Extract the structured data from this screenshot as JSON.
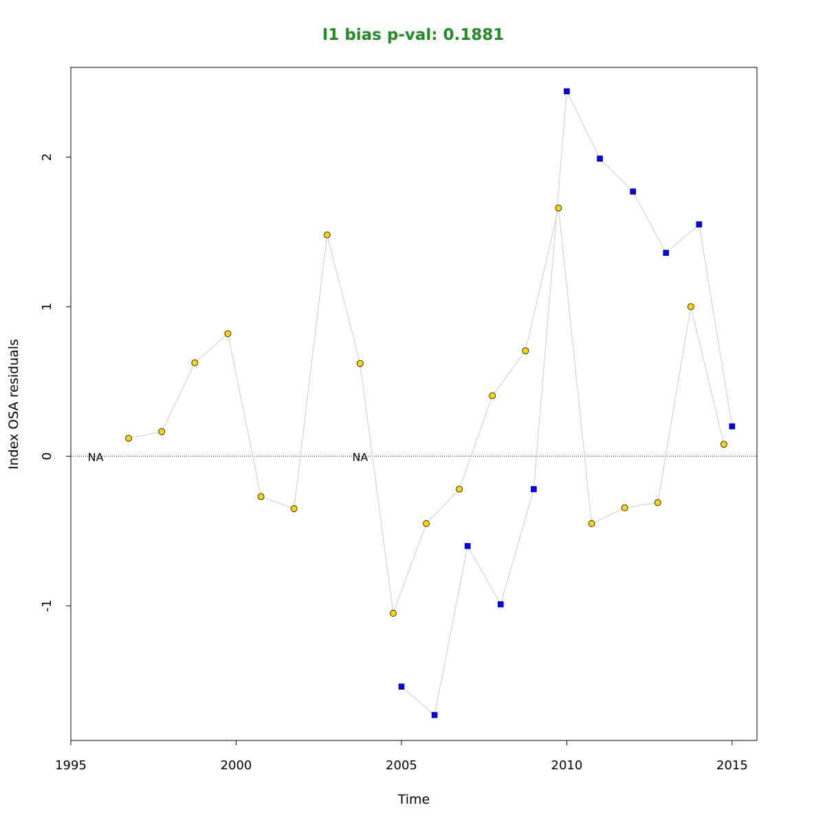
{
  "chart_data": {
    "type": "scatter",
    "title": "I1 bias p-val: 0.1881",
    "title_color": "#228B22",
    "xlabel": "Time",
    "ylabel": "Index OSA residuals",
    "xlim": [
      1995,
      2015.75
    ],
    "ylim": [
      -1.9,
      2.6
    ],
    "x_ticks": [
      1995,
      2000,
      2005,
      2010,
      2015
    ],
    "y_ticks": [
      -1,
      0,
      1,
      2
    ],
    "reference_line": {
      "y": 0,
      "style": "dotted"
    },
    "connector_color": "#cccccc",
    "series": [
      {
        "marker": "circle",
        "color": "#FFD700",
        "x": [
          1996.75,
          1997.75,
          1998.75,
          1999.75,
          2000.75,
          2001.75,
          2002.75,
          2003.75,
          2004.75,
          2005.75,
          2006.75,
          2007.75,
          2008.75,
          2009.75,
          2010.75,
          2011.75,
          2012.75,
          2013.75,
          2014.75
        ],
        "y": [
          0.12,
          0.165,
          0.625,
          0.82,
          -0.27,
          -0.35,
          1.48,
          0.62,
          -1.05,
          -0.45,
          -0.22,
          0.405,
          0.705,
          1.66,
          -0.45,
          -0.345,
          -0.31,
          1.0,
          0.08
        ]
      },
      {
        "marker": "square",
        "color": "#0000FF",
        "x": [
          2005,
          2006,
          2007,
          2008,
          2009,
          2010,
          2011,
          2012,
          2013,
          2014,
          2015
        ],
        "y": [
          -1.54,
          -1.73,
          -0.6,
          -0.99,
          -0.22,
          2.44,
          1.99,
          1.77,
          1.36,
          1.55,
          0.2
        ]
      }
    ],
    "annotations": [
      {
        "text": "NA",
        "x": 1995.75,
        "y": 0
      },
      {
        "text": "NA",
        "x": 2003.75,
        "y": 0
      }
    ]
  }
}
